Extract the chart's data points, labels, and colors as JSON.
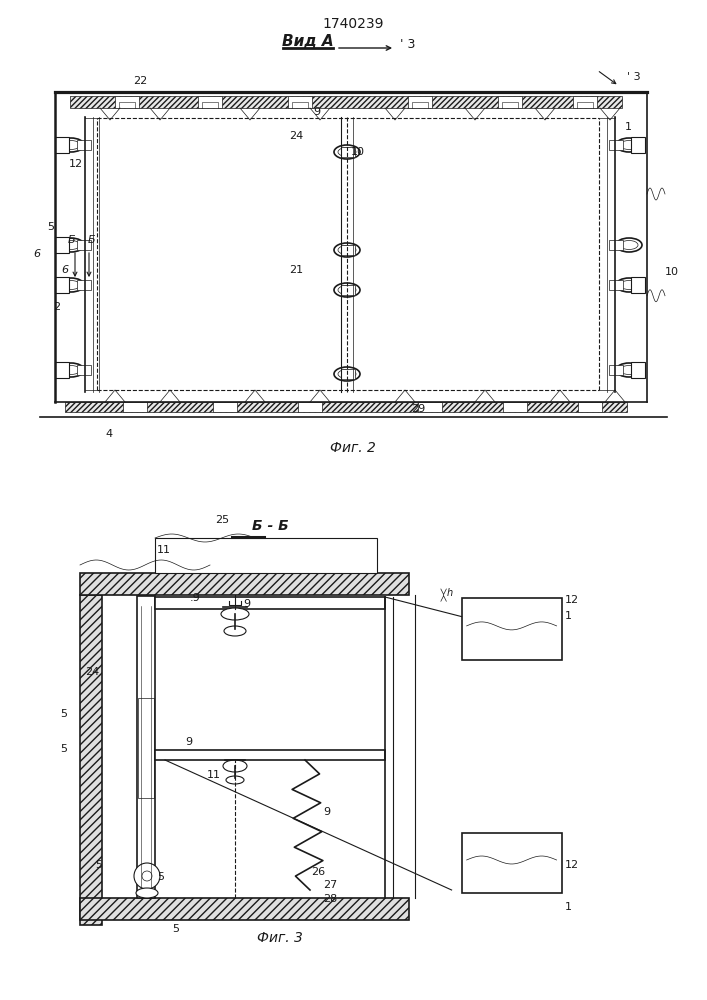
{
  "title_number": "1740239",
  "fig2_label": "Вид А",
  "fig2_caption": "Фиг. 2",
  "fig3_caption": "Фиг. 3",
  "fig3_section": "Б - Б",
  "bg_color": "#ffffff",
  "line_color": "#1a1a1a"
}
